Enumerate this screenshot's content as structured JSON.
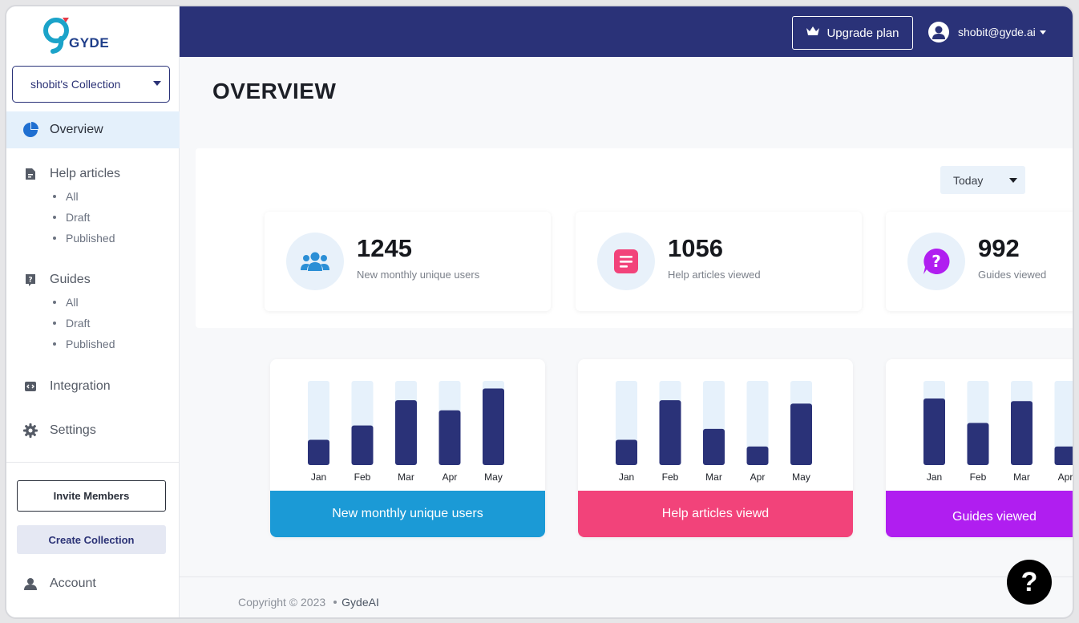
{
  "brand": {
    "logo_text": "GYDE"
  },
  "sidebar": {
    "collection": "shobit's Collection",
    "items": [
      {
        "label": "Overview",
        "icon": "pie-chart-icon"
      },
      {
        "label": "Help articles",
        "icon": "document-icon"
      },
      {
        "label": "Guides",
        "icon": "question-icon"
      },
      {
        "label": "Integration",
        "icon": "code-icon"
      },
      {
        "label": "Settings",
        "icon": "gear-icon"
      }
    ],
    "help_sub": [
      "All",
      "Draft",
      "Published"
    ],
    "guides_sub": [
      "All",
      "Draft",
      "Published"
    ],
    "invite_label": "Invite Members",
    "create_label": "Create Collection",
    "account_label": "Account"
  },
  "topbar": {
    "upgrade_label": "Upgrade plan",
    "user_email": "shobit@gyde.ai"
  },
  "main": {
    "title": "OVERVIEW",
    "period": "Today",
    "stats": [
      {
        "value": "1245",
        "label": "New monthly unique users",
        "icon": "users-icon"
      },
      {
        "value": "1056",
        "label": "Help articles viewed",
        "icon": "article-icon"
      },
      {
        "value": "992",
        "label": "Guides viewed",
        "icon": "help-bubble-icon"
      }
    ]
  },
  "chart_data": [
    {
      "type": "bar",
      "title": "New monthly unique users",
      "categories": [
        "Jan",
        "Feb",
        "Mar",
        "Apr",
        "May"
      ],
      "values": [
        30,
        47,
        77,
        65,
        91
      ],
      "ylim": [
        0,
        100
      ],
      "color": "#1b9ad6"
    },
    {
      "type": "bar",
      "title": "Help articles viewd",
      "categories": [
        "Jan",
        "Feb",
        "Mar",
        "Apr",
        "May"
      ],
      "values": [
        30,
        77,
        43,
        22,
        73
      ],
      "ylim": [
        0,
        100
      ],
      "color": "#f2437a"
    },
    {
      "type": "bar",
      "title": "Guides viewed",
      "categories": [
        "Jan",
        "Feb",
        "Mar",
        "Apr"
      ],
      "values": [
        79,
        50,
        76,
        22
      ],
      "ylim": [
        0,
        100
      ],
      "color": "#b01ef0"
    }
  ],
  "footer": {
    "copyright": "Copyright © 2023",
    "brand": "GydeAI"
  },
  "colors": {
    "navy": "#2a3278",
    "bar_track": "#e6f1fb"
  }
}
